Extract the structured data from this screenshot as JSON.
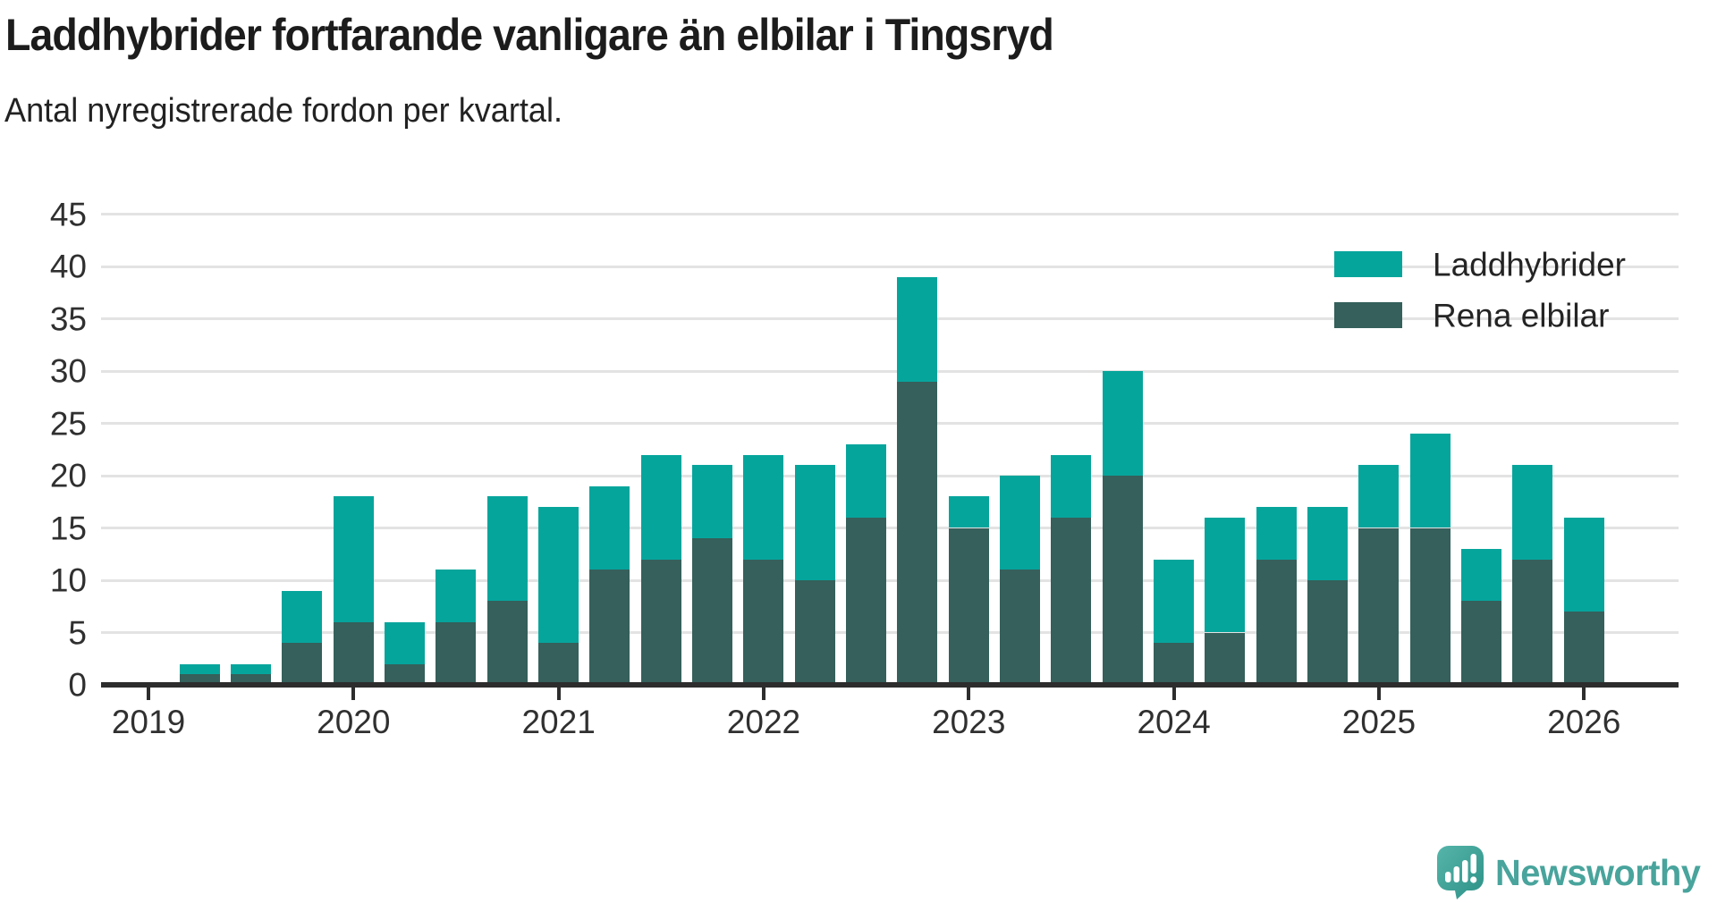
{
  "title": "Laddhybrider fortfarande vanligare än elbilar i Tingsryd",
  "subtitle": "Antal nyregistrerade fordon per kvartal.",
  "legend": {
    "items": [
      {
        "label": "Laddhybrider",
        "color": "#06a59c"
      },
      {
        "label": "Rena elbilar",
        "color": "#35605b"
      }
    ]
  },
  "colors": {
    "laddhybrider": "#06a59c",
    "rena_elbilar": "#35605b",
    "axis": "#2d2d2d",
    "gridline": "#e3e3e3",
    "text": "#303030",
    "title_text": "#1c1c1c",
    "logo_teal": "#48a49c"
  },
  "y_axis": {
    "ticks": [
      0,
      5,
      10,
      15,
      20,
      25,
      30,
      35,
      40,
      45
    ]
  },
  "x_axis": {
    "ticks": [
      "2019",
      "2020",
      "2021",
      "2022",
      "2023",
      "2024",
      "2025",
      "2026"
    ]
  },
  "chart_data": {
    "type": "bar",
    "stacked": true,
    "title": "Laddhybrider fortfarande vanligare än elbilar i Tingsryd",
    "subtitle": "Antal nyregistrerade fordon per kvartal.",
    "xlabel": "",
    "ylabel": "",
    "ylim": [
      0,
      45
    ],
    "grid": true,
    "legend_position": "top-right",
    "first_bar_quarter_offset": 1,
    "categories": [
      "2019 Q2",
      "2019 Q3",
      "2019 Q4",
      "2020 Q1",
      "2020 Q2",
      "2020 Q3",
      "2020 Q4",
      "2021 Q1",
      "2021 Q2",
      "2021 Q3",
      "2021 Q4",
      "2022 Q1",
      "2022 Q2",
      "2022 Q3",
      "2022 Q4",
      "2023 Q1",
      "2023 Q2",
      "2023 Q3",
      "2023 Q4",
      "2024 Q1",
      "2024 Q2",
      "2024 Q3",
      "2024 Q4",
      "2025 Q1",
      "2025 Q2",
      "2025 Q3",
      "2025 Q4",
      "2026 Q1"
    ],
    "series": [
      {
        "name": "Laddhybrider",
        "values": [
          1,
          1,
          5,
          12,
          4,
          5,
          10,
          13,
          8,
          10,
          7,
          10,
          11,
          7,
          10,
          3,
          9,
          6,
          10,
          8,
          11,
          5,
          7,
          6,
          9,
          5,
          9,
          9
        ]
      },
      {
        "name": "Rena elbilar",
        "values": [
          1,
          1,
          4,
          6,
          2,
          6,
          8,
          4,
          11,
          12,
          14,
          12,
          10,
          16,
          29,
          15,
          11,
          16,
          20,
          4,
          5,
          12,
          10,
          15,
          15,
          8,
          12,
          7
        ]
      }
    ],
    "totals": [
      2,
      2,
      9,
      18,
      6,
      11,
      18,
      17,
      19,
      22,
      21,
      22,
      21,
      23,
      39,
      18,
      20,
      22,
      30,
      12,
      16,
      17,
      17,
      21,
      24,
      13,
      21,
      16
    ]
  },
  "logo": {
    "text": "Newsworthy"
  }
}
